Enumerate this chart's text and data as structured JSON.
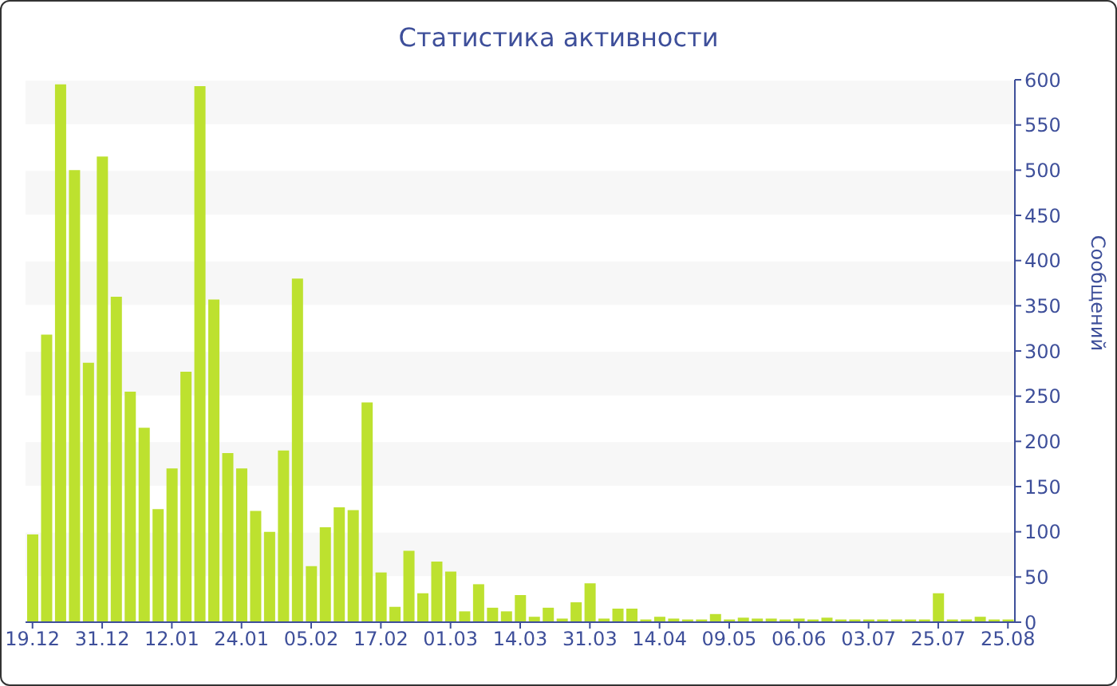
{
  "chart_data": {
    "type": "bar",
    "title": "Статистика активности",
    "ylabel": "Сообщений",
    "categories": [
      "19.12",
      null,
      null,
      null,
      null,
      "31.12",
      null,
      null,
      null,
      null,
      "12.01",
      null,
      null,
      null,
      null,
      "24.01",
      null,
      null,
      null,
      null,
      "05.02",
      null,
      null,
      null,
      null,
      "17.02",
      null,
      null,
      null,
      null,
      "01.03",
      null,
      null,
      null,
      null,
      "14.03",
      null,
      null,
      null,
      null,
      "31.03",
      null,
      null,
      null,
      null,
      "14.04",
      null,
      null,
      null,
      null,
      "09.05",
      null,
      null,
      null,
      null,
      "06.06",
      null,
      null,
      null,
      null,
      "03.07",
      null,
      null,
      null,
      null,
      "25.07",
      null,
      null,
      null,
      null,
      "25.08"
    ],
    "values": [
      97,
      318,
      595,
      500,
      287,
      515,
      360,
      255,
      215,
      125,
      170,
      277,
      593,
      357,
      187,
      170,
      123,
      100,
      190,
      380,
      62,
      105,
      127,
      124,
      243,
      55,
      17,
      79,
      32,
      67,
      56,
      12,
      42,
      16,
      12,
      30,
      6,
      16,
      4,
      22,
      43,
      4,
      15,
      15,
      3,
      6,
      4,
      3,
      3,
      9,
      3,
      5,
      4,
      4,
      3,
      4,
      3,
      5,
      3,
      3,
      3,
      3,
      3,
      3,
      3,
      32,
      3,
      3,
      6,
      3,
      3
    ],
    "color": "#bde12f",
    "ylim": [
      0,
      600
    ],
    "yticks": [
      0,
      50,
      100,
      150,
      200,
      250,
      300,
      350,
      400,
      450,
      500,
      550,
      600
    ],
    "grid": "y"
  }
}
